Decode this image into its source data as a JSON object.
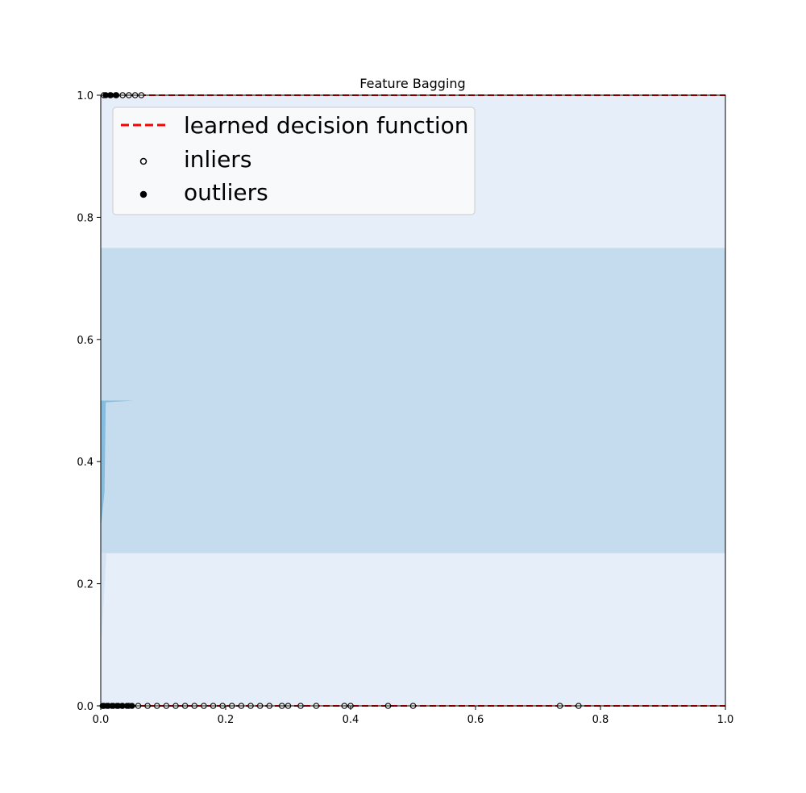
{
  "chart_data": {
    "type": "scatter",
    "title": "Feature Bagging",
    "xlabel": "",
    "ylabel": "",
    "xlim": [
      0,
      1
    ],
    "ylim": [
      0,
      1
    ],
    "xticks": [
      "0.0",
      "0.2",
      "0.4",
      "0.6",
      "0.8",
      "1.0"
    ],
    "yticks": [
      "0.0",
      "0.2",
      "0.4",
      "0.6",
      "0.8",
      "1.0"
    ],
    "grid": false,
    "legend": {
      "placement": "upper-left",
      "entries": [
        "learned decision function",
        "inliers",
        "outliers"
      ]
    },
    "colors": {
      "background_fill": "#e6eef9",
      "band_fill": "#c5dcef",
      "boundary_fill": "#6baed6",
      "decision_line": "#ff0000",
      "inlier_marker": "#ffffff",
      "outlier_marker": "#000000"
    },
    "contour_bands": [
      {
        "level": "low",
        "y_range": [
          0,
          0.25
        ]
      },
      {
        "level": "mid",
        "y_range": [
          0.25,
          0.75
        ]
      },
      {
        "level": "low",
        "y_range": [
          0.75,
          1.0
        ]
      }
    ],
    "decision_function_lines": [
      {
        "y": 0.0,
        "x_range": [
          0.0,
          1.0
        ]
      },
      {
        "y": 1.0,
        "x_range": [
          0.0,
          1.0
        ]
      }
    ],
    "series": [
      {
        "name": "inliers",
        "x": [
          0.005,
          0.012,
          0.02,
          0.028,
          0.035,
          0.045,
          0.06,
          0.075,
          0.09,
          0.105,
          0.12,
          0.135,
          0.15,
          0.165,
          0.18,
          0.195,
          0.21,
          0.225,
          0.24,
          0.255,
          0.27,
          0.29,
          0.3,
          0.32,
          0.345,
          0.39,
          0.4,
          0.46,
          0.5,
          0.735,
          0.765,
          0.005,
          0.015,
          0.025,
          0.035,
          0.045,
          0.055,
          0.065
        ],
        "y": [
          0,
          0,
          0,
          0,
          0,
          0,
          0,
          0,
          0,
          0,
          0,
          0,
          0,
          0,
          0,
          0,
          0,
          0,
          0,
          0,
          0,
          0,
          0,
          0,
          0,
          0,
          0,
          0,
          0,
          0,
          0,
          1,
          1,
          1,
          1,
          1,
          1,
          1
        ]
      },
      {
        "name": "outliers",
        "x": [
          0.003,
          0.01,
          0.018,
          0.026,
          0.034,
          0.042,
          0.05,
          0.008,
          0.016,
          0.024
        ],
        "y": [
          0,
          0,
          0,
          0,
          0,
          0,
          0,
          1,
          1,
          1
        ]
      }
    ]
  }
}
